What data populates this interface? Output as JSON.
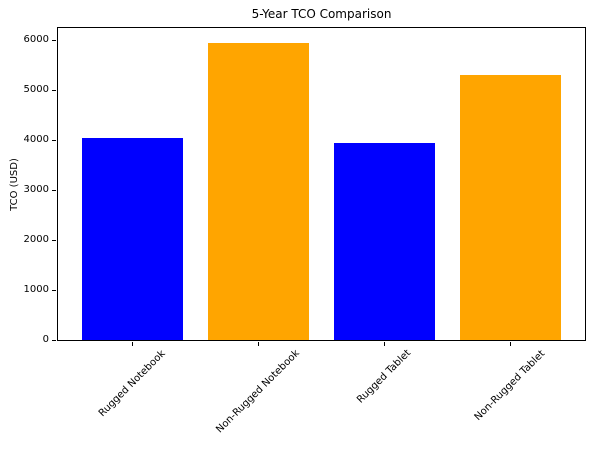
{
  "chart_data": {
    "type": "bar",
    "title": "5-Year TCO Comparison",
    "xlabel": "",
    "ylabel": "TCO (USD)",
    "categories": [
      "Rugged Notebook",
      "Non-Rugged Notebook",
      "Rugged Tablet",
      "Non-Rugged Tablet"
    ],
    "values": [
      4050,
      5950,
      3950,
      5300
    ],
    "bar_colors": [
      "#0000ff",
      "#ffa500",
      "#0000ff",
      "#ffa500"
    ],
    "ylim": [
      0,
      6250
    ],
    "yticks": [
      0,
      1000,
      2000,
      3000,
      4000,
      5000,
      6000
    ],
    "ytick_labels": [
      "0",
      "1000",
      "2000",
      "3000",
      "4000",
      "5000",
      "6000"
    ],
    "xtick_rotation": 45,
    "bar_width_fraction": 0.8,
    "x_margin_fraction": 0.05,
    "grid": false,
    "legend_position": "none",
    "colors": {
      "rugged": "#0000ff",
      "non_rugged": "#ffa500",
      "axis": "#000000",
      "background": "#ffffff"
    }
  }
}
